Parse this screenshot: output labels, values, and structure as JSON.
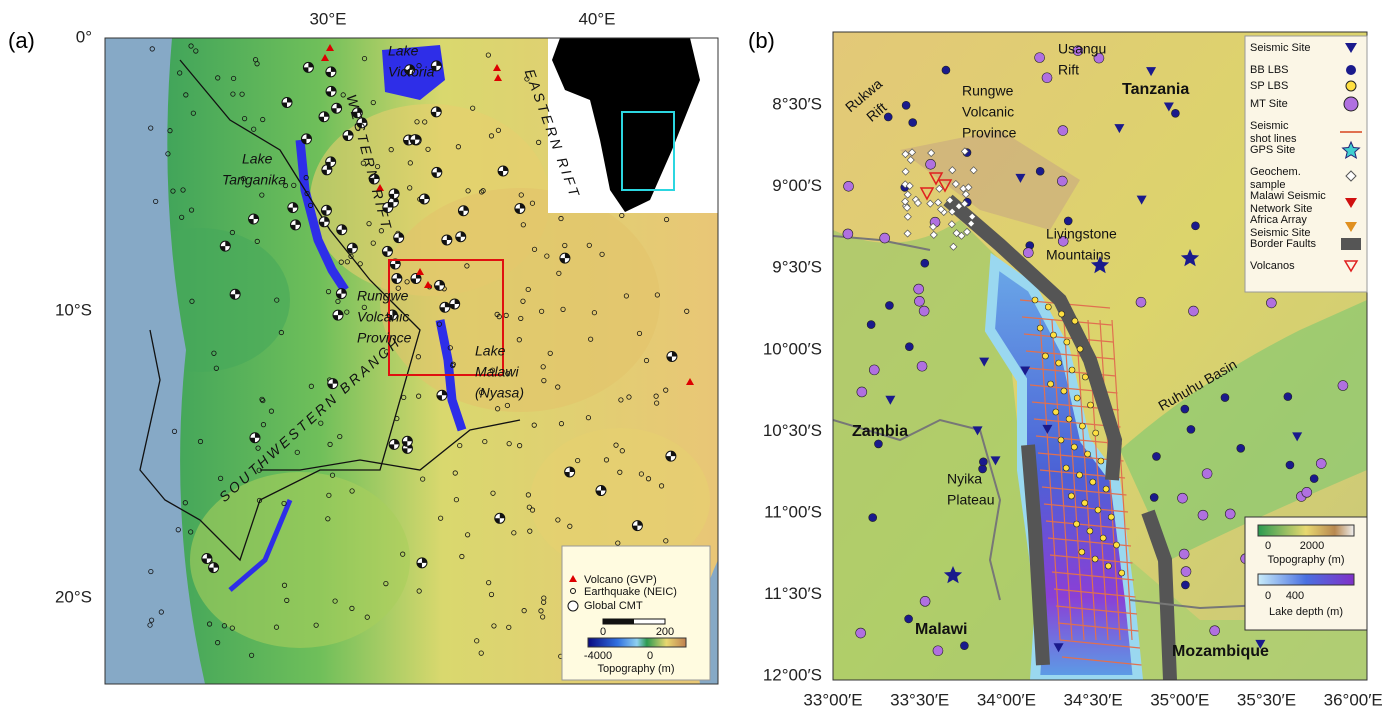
{
  "panel_a": {
    "label": "(a)",
    "lat_ticks": [
      "0°",
      "10°S",
      "20°S"
    ],
    "lon_ticks": [
      "30°E",
      "40°E"
    ],
    "places": [
      [
        "Lake",
        "Victoria"
      ],
      [
        "EASTERN RIFT"
      ],
      [
        "WESTERN RIFT"
      ],
      [
        "Lake",
        "Tanganika"
      ],
      [
        "Rungwe",
        "Volcanic",
        "Province"
      ],
      [
        "Lake",
        "Malawi",
        "(Nyasa)"
      ],
      [
        "SOUTHWESTERN BRANCH"
      ]
    ],
    "legend": [
      "Volcano (GVP)",
      "Earthquake (NEIC)",
      "Global CMT"
    ],
    "scale_ticks": [
      "0",
      "200"
    ],
    "colorbar_ticks": [
      "-4000",
      "0"
    ],
    "colorbar_title": "Topography (m)"
  },
  "panel_b": {
    "label": "(b)",
    "lat_ticks": [
      "8°30′S",
      "9°00′S",
      "9°30′S",
      "10°00′S",
      "10°30′S",
      "11°00′S",
      "11°30′S",
      "12°00′S"
    ],
    "lon_ticks": [
      "33°00′E",
      "33°30′E",
      "34°00′E",
      "34°30′E",
      "35°00′E",
      "35°30′E",
      "36°00′E"
    ],
    "places": [
      [
        "Rukwa",
        "Rift"
      ],
      [
        "Rungwe",
        "Volcanic",
        "Province"
      ],
      [
        "Usangu",
        "Rift"
      ],
      [
        "Tanzania"
      ],
      [
        "Livingstone",
        "Mountains"
      ],
      [
        "Ruhuhu Basin"
      ],
      [
        "Zambia"
      ],
      [
        "Nyika",
        "Plateau"
      ],
      [
        "Malawi"
      ],
      [
        "Mozambique"
      ]
    ],
    "legend": [
      [
        "Seismic Site"
      ],
      [
        "BB LBS"
      ],
      [
        "SP LBS"
      ],
      [
        "MT Site"
      ],
      [
        "Seismic",
        "shot lines"
      ],
      [
        "GPS Site"
      ],
      [
        "Geochem.",
        "sample"
      ],
      [
        "Malawi Seismic",
        "Network Site"
      ],
      [
        "Africa Array",
        "Seismic Site"
      ],
      [
        "Border Faults"
      ],
      [
        "Volcanos"
      ]
    ],
    "topo_ticks": [
      "0",
      "2000"
    ],
    "topo_title": "Topography (m)",
    "depth_ticks": [
      "0",
      "400"
    ],
    "depth_title": "Lake depth (m)"
  }
}
